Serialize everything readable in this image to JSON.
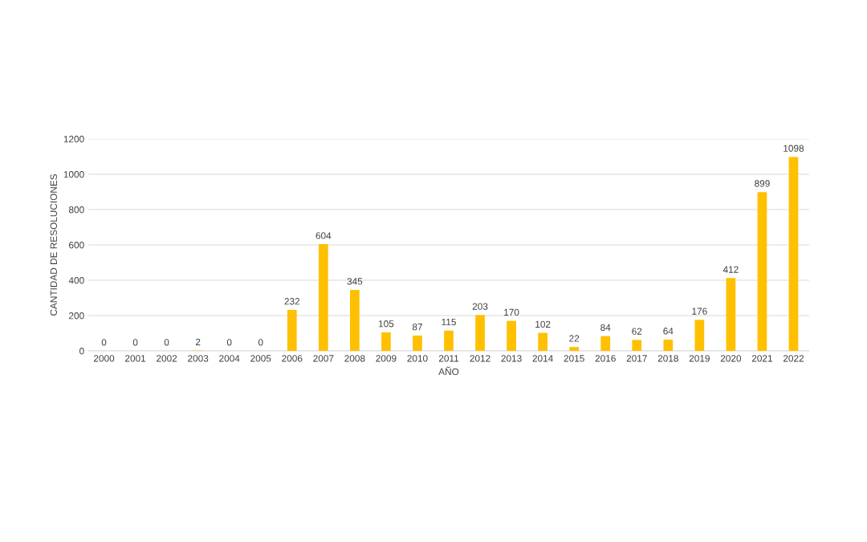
{
  "chart_data": {
    "type": "bar",
    "xlabel": "AÑO",
    "ylabel": "CANTIDAD DE RESOLUCIONES",
    "categories": [
      "2000",
      "2001",
      "2002",
      "2003",
      "2004",
      "2005",
      "2006",
      "2007",
      "2008",
      "2009",
      "2010",
      "2011",
      "2012",
      "2013",
      "2014",
      "2015",
      "2016",
      "2017",
      "2018",
      "2019",
      "2020",
      "2021",
      "2022"
    ],
    "values": [
      0,
      0,
      0,
      2,
      0,
      0,
      232,
      604,
      345,
      105,
      87,
      115,
      203,
      170,
      102,
      22,
      84,
      62,
      64,
      176,
      412,
      899,
      1098
    ],
    "color": "#ffc000",
    "data_labels": true,
    "ylim": [
      0,
      1200
    ],
    "yticks": [
      0,
      200,
      400,
      600,
      800,
      1000,
      1200
    ],
    "grid": "y",
    "legend": false
  }
}
